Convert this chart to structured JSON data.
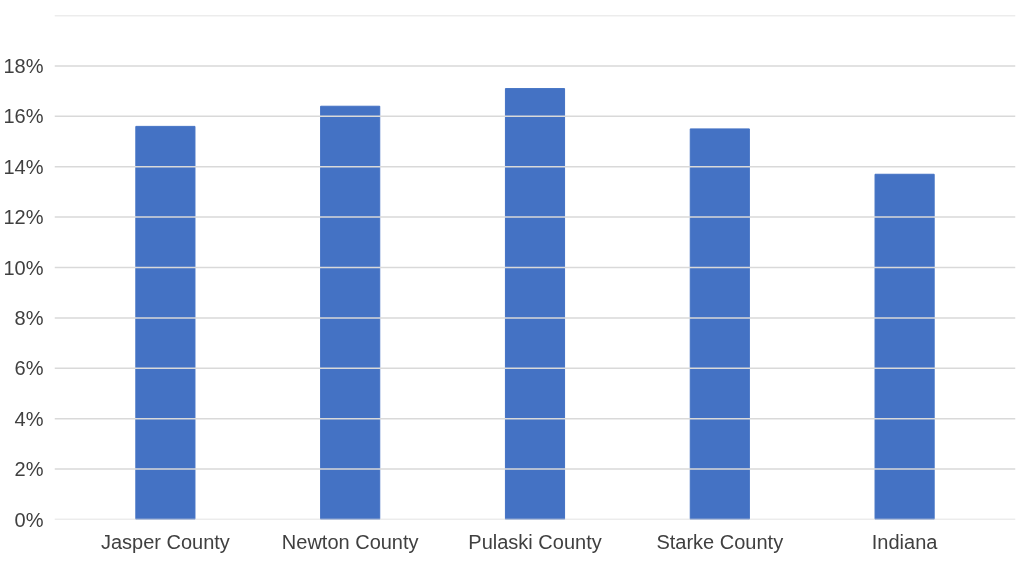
{
  "chart_data": {
    "type": "bar",
    "categories": [
      "Jasper County",
      "Newton County",
      "Pulaski County",
      "Starke County",
      "Indiana"
    ],
    "values": [
      15.6,
      16.4,
      17.1,
      15.5,
      13.7
    ],
    "color": "#4472c4",
    "ylim": [
      0,
      20
    ],
    "yticks": [
      {
        "value": 0,
        "label": "0%"
      },
      {
        "value": 2,
        "label": "2%"
      },
      {
        "value": 4,
        "label": "4%"
      },
      {
        "value": 6,
        "label": "6%"
      },
      {
        "value": 8,
        "label": "8%"
      },
      {
        "value": 10,
        "label": "10%"
      },
      {
        "value": 12,
        "label": "12%"
      },
      {
        "value": 14,
        "label": "14%"
      },
      {
        "value": 16,
        "label": "16%"
      },
      {
        "value": 18,
        "label": "18%"
      },
      {
        "value": 20,
        "label": null
      }
    ],
    "grid": "y"
  }
}
